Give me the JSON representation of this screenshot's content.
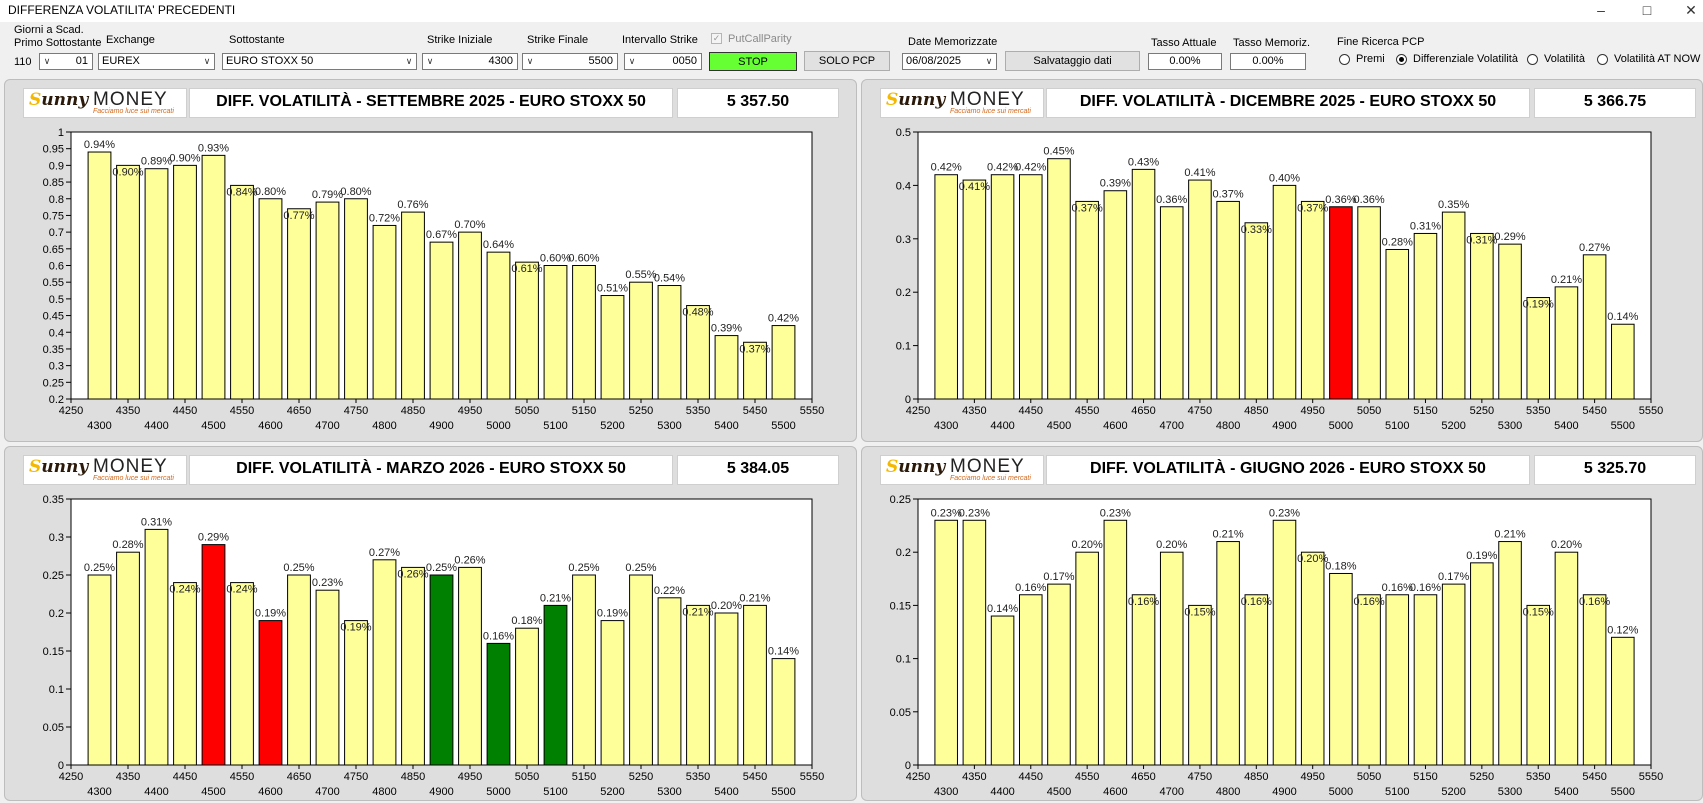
{
  "window": {
    "title": "DIFFERENZA VOLATILITA' PRECEDENTI"
  },
  "toolbar": {
    "giorni_label1": "Giorni a Scad.",
    "giorni_label2": "Primo Sottostante",
    "giorni_value": "110",
    "giorni_combo": "01",
    "exchange_label": "Exchange",
    "exchange_value": "EUREX",
    "sottostante_label": "Sottostante",
    "sottostante_value": "EURO STOXX 50",
    "strike_iniziale_label": "Strike Iniziale",
    "strike_iniziale_value": "4300",
    "strike_finale_label": "Strike Finale",
    "strike_finale_value": "5500",
    "intervallo_label": "Intervallo Strike",
    "intervallo_value": "0050",
    "putcall_label": "PutCallParity",
    "stop_label": "STOP",
    "solo_pcp_label": "SOLO PCP",
    "date_label": "Date Memorizzate",
    "date_value": "06/08/2025",
    "salva_label": "Salvataggio dati",
    "tasso_attuale_label": "Tasso Attuale",
    "tasso_attuale_value": "0.00%",
    "tasso_memoriz_label": "Tasso Memoriz.",
    "tasso_memoriz_value": "0.00%",
    "fine_ricerca_label": "Fine Ricerca PCP",
    "radio_premi": "Premi",
    "radio_diff": "Differenziale Volatilità",
    "radio_vol": "Volatilità",
    "radio_vol_now": "Volatilità AT NOW",
    "stop_color": "#66ff33",
    "selected_radio": "Differenziale Volatilità"
  },
  "logo": {
    "brand_left": "unny",
    "brand_s": "S",
    "brand_right": "MONEY",
    "tagline": "Facciamo luce sui mercati"
  },
  "colors": {
    "bar": "#ffff99",
    "red": "#ff0000",
    "green": "#008000"
  },
  "panels": [
    {
      "title": "DIFF. VOLATILITÀ - SETTEMBRE 2025 - EURO STOXX 50",
      "value": "5 357.50",
      "chart_data": {
        "type": "bar",
        "x": [
          4300,
          4350,
          4400,
          4450,
          4500,
          4550,
          4600,
          4650,
          4700,
          4750,
          4800,
          4850,
          4900,
          4950,
          5000,
          5050,
          5100,
          5150,
          5200,
          5250,
          5300,
          5350,
          5400,
          5450,
          5500
        ],
        "values": [
          0.94,
          0.9,
          0.89,
          0.9,
          0.93,
          0.84,
          0.8,
          0.77,
          0.79,
          0.8,
          0.72,
          0.76,
          0.67,
          0.7,
          0.64,
          0.61,
          0.6,
          0.6,
          0.51,
          0.55,
          0.54,
          0.48,
          0.39,
          0.37,
          0.42
        ],
        "labels": [
          "0.94%",
          "0.90%",
          "0.89%",
          "0.90%",
          "0.93%",
          "0.84%",
          "0.80%",
          "0.77%",
          "0.79%",
          "0.80%",
          "0.72%",
          "0.76%",
          "0.67%",
          "0.70%",
          "0.64%",
          "0.61%",
          "0.60%",
          "0.60%",
          "0.51%",
          "0.55%",
          "0.54%",
          "0.48%",
          "0.39%",
          "0.37%",
          "0.42%"
        ],
        "bar_colors": {},
        "ylim": [
          0.2,
          1
        ],
        "yticks": [
          "1",
          "0.95",
          "0.9",
          "0.85",
          "0.8",
          "0.75",
          "0.7",
          "0.65",
          "0.6",
          "0.55",
          "0.5",
          "0.45",
          "0.4",
          "0.35",
          "0.3",
          "0.25",
          "0.2"
        ],
        "xticks_top": [
          "4250",
          "4350",
          "4450",
          "4550",
          "4650",
          "4750",
          "4850",
          "4950",
          "5050",
          "5150",
          "5250",
          "5350",
          "5450",
          "5550"
        ],
        "xticks_bottom": [
          "4300",
          "4400",
          "4500",
          "4600",
          "4700",
          "4800",
          "4900",
          "5000",
          "5100",
          "5200",
          "5300",
          "5400",
          "5500"
        ],
        "xlim": [
          4250,
          5550
        ]
      }
    },
    {
      "title": "DIFF. VOLATILITÀ - DICEMBRE 2025 - EURO STOXX 50",
      "value": "5 366.75",
      "chart_data": {
        "type": "bar",
        "x": [
          4300,
          4350,
          4400,
          4450,
          4500,
          4550,
          4600,
          4650,
          4700,
          4750,
          4800,
          4850,
          4900,
          4950,
          5000,
          5050,
          5100,
          5150,
          5200,
          5250,
          5300,
          5350,
          5400,
          5450,
          5500
        ],
        "values": [
          0.42,
          0.41,
          0.42,
          0.42,
          0.45,
          0.37,
          0.39,
          0.43,
          0.36,
          0.41,
          0.37,
          0.33,
          0.4,
          0.37,
          0.36,
          0.36,
          0.28,
          0.31,
          0.35,
          0.31,
          0.29,
          0.19,
          0.21,
          0.27,
          0.14
        ],
        "labels": [
          "0.42%",
          "0.41%",
          "0.42%",
          "0.42%",
          "0.45%",
          "0.37%",
          "0.39%",
          "0.43%",
          "0.36%",
          "0.41%",
          "0.37%",
          "0.33%",
          "0.40%",
          "0.37%",
          "0.36%",
          "0.36%",
          "0.28%",
          "0.31%",
          "0.35%",
          "0.31%",
          "0.29%",
          "0.19%",
          "0.21%",
          "0.27%",
          "0.14%"
        ],
        "bar_colors": {
          "14": "red"
        },
        "ylim": [
          0,
          0.5
        ],
        "yticks": [
          "0.5",
          "0.4",
          "0.3",
          "0.2",
          "0.1",
          "0"
        ],
        "xticks_top": [
          "4250",
          "4350",
          "4450",
          "4550",
          "4650",
          "4750",
          "4850",
          "4950",
          "5050",
          "5150",
          "5250",
          "5350",
          "5450",
          "5550"
        ],
        "xticks_bottom": [
          "4300",
          "4400",
          "4500",
          "4600",
          "4700",
          "4800",
          "4900",
          "5000",
          "5100",
          "5200",
          "5300",
          "5400",
          "5500"
        ],
        "xlim": [
          4250,
          5550
        ]
      }
    },
    {
      "title": "DIFF. VOLATILITÀ - MARZO 2026 - EURO STOXX 50",
      "value": "5 384.05",
      "chart_data": {
        "type": "bar",
        "x": [
          4300,
          4350,
          4400,
          4450,
          4500,
          4550,
          4600,
          4650,
          4700,
          4750,
          4800,
          4850,
          4900,
          4950,
          5000,
          5050,
          5100,
          5150,
          5200,
          5250,
          5300,
          5350,
          5400,
          5450,
          5500
        ],
        "values": [
          0.25,
          0.28,
          0.31,
          0.24,
          0.29,
          0.24,
          0.19,
          0.25,
          0.23,
          0.19,
          0.27,
          0.26,
          0.25,
          0.26,
          0.16,
          0.18,
          0.21,
          0.25,
          0.19,
          0.25,
          0.22,
          0.21,
          0.2,
          0.21,
          0.14
        ],
        "labels": [
          "0.25%",
          "0.28%",
          "0.31%",
          "0.24%",
          "0.29%",
          "0.24%",
          "0.19%",
          "0.25%",
          "0.23%",
          "0.19%",
          "0.27%",
          "0.26%",
          "0.25%",
          "0.26%",
          "0.16%",
          "0.18%",
          "0.21%",
          "0.25%",
          "0.19%",
          "0.25%",
          "0.22%",
          "0.21%",
          "0.20%",
          "0.21%",
          "0.14%"
        ],
        "bar_colors": {
          "4": "red",
          "6": "red",
          "12": "green",
          "14": "green",
          "16": "green"
        },
        "ylim": [
          0,
          0.35
        ],
        "yticks": [
          "0.35",
          "0.3",
          "0.25",
          "0.2",
          "0.15",
          "0.1",
          "0.05",
          "0"
        ],
        "xticks_top": [
          "4250",
          "4350",
          "4450",
          "4550",
          "4650",
          "4750",
          "4850",
          "4950",
          "5050",
          "5150",
          "5250",
          "5350",
          "5450",
          "5550"
        ],
        "xticks_bottom": [
          "4300",
          "4400",
          "4500",
          "4600",
          "4700",
          "4800",
          "4900",
          "5000",
          "5100",
          "5200",
          "5300",
          "5400",
          "5500"
        ],
        "xlim": [
          4250,
          5550
        ]
      }
    },
    {
      "title": "DIFF. VOLATILITÀ - GIUGNO 2026 - EURO STOXX 50",
      "value": "5 325.70",
      "chart_data": {
        "type": "bar",
        "x": [
          4300,
          4350,
          4400,
          4450,
          4500,
          4550,
          4600,
          4650,
          4700,
          4750,
          4800,
          4850,
          4900,
          4950,
          5000,
          5050,
          5100,
          5150,
          5200,
          5250,
          5300,
          5350,
          5400,
          5450,
          5500
        ],
        "values": [
          0.23,
          0.23,
          0.14,
          0.16,
          0.17,
          0.2,
          0.23,
          0.16,
          0.2,
          0.15,
          0.21,
          0.16,
          0.23,
          0.2,
          0.18,
          0.16,
          0.16,
          0.16,
          0.17,
          0.19,
          0.21,
          0.15,
          0.2,
          0.16,
          0.12
        ],
        "labels": [
          "0.23%",
          "0.23%",
          "0.14%",
          "0.16%",
          "0.17%",
          "0.20%",
          "0.23%",
          "0.16%",
          "0.20%",
          "0.15%",
          "0.21%",
          "0.16%",
          "0.23%",
          "0.20%",
          "0.18%",
          "0.16%",
          "0.16%",
          "0.16%",
          "0.17%",
          "0.19%",
          "0.21%",
          "0.15%",
          "0.20%",
          "0.16%",
          "0.12%"
        ],
        "bar_colors": {},
        "ylim": [
          0,
          0.25
        ],
        "yticks": [
          "0.25",
          "0.2",
          "0.15",
          "0.1",
          "0.05",
          "0"
        ],
        "xticks_top": [
          "4250",
          "4350",
          "4450",
          "4550",
          "4650",
          "4750",
          "4850",
          "4950",
          "5050",
          "5150",
          "5250",
          "5350",
          "5450",
          "5550"
        ],
        "xticks_bottom": [
          "4300",
          "4400",
          "4500",
          "4600",
          "4700",
          "4800",
          "4900",
          "5000",
          "5100",
          "5200",
          "5300",
          "5400",
          "5500"
        ],
        "xlim": [
          4250,
          5550
        ]
      }
    }
  ]
}
